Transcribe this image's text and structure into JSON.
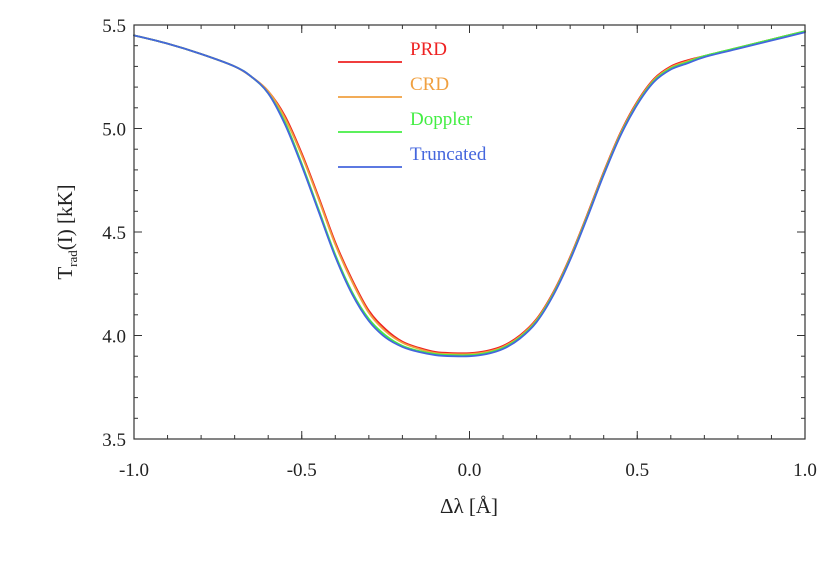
{
  "chart_data": {
    "type": "line",
    "xlabel": "Δλ [Å]",
    "ylabel": {
      "main": "T",
      "sub": "rad",
      "rest": "(I) [kK]"
    },
    "xlim": [
      -1.0,
      1.0
    ],
    "ylim": [
      3.5,
      5.5
    ],
    "xticks": [
      -1.0,
      -0.5,
      0.0,
      0.5,
      1.0
    ],
    "xtick_labels": [
      "-1.0",
      "-0.5",
      "0.0",
      "0.5",
      "1.0"
    ],
    "yticks": [
      3.5,
      4.0,
      4.5,
      5.0,
      5.5
    ],
    "ytick_labels": [
      "3.5",
      "4.0",
      "4.5",
      "5.0",
      "5.5"
    ],
    "legend_position": "top-center",
    "series": [
      {
        "name": "PRD",
        "color": "#ee2222",
        "x": [
          -1.0,
          -0.9,
          -0.8,
          -0.7,
          -0.65,
          -0.6,
          -0.55,
          -0.5,
          -0.45,
          -0.4,
          -0.35,
          -0.3,
          -0.25,
          -0.2,
          -0.15,
          -0.1,
          -0.05,
          0.0,
          0.05,
          0.1,
          0.15,
          0.2,
          0.25,
          0.3,
          0.35,
          0.4,
          0.45,
          0.5,
          0.55,
          0.6,
          0.65,
          0.7,
          0.8,
          0.9,
          1.0
        ],
        "values": [
          5.45,
          5.41,
          5.36,
          5.3,
          5.25,
          5.18,
          5.06,
          4.88,
          4.67,
          4.45,
          4.27,
          4.12,
          4.03,
          3.97,
          3.94,
          3.92,
          3.915,
          3.915,
          3.925,
          3.95,
          4.0,
          4.08,
          4.21,
          4.38,
          4.58,
          4.79,
          4.98,
          5.13,
          5.24,
          5.3,
          5.33,
          5.35,
          5.39,
          5.43,
          5.47
        ]
      },
      {
        "name": "CRD",
        "color": "#f0a040",
        "x": [
          -1.0,
          -0.9,
          -0.8,
          -0.7,
          -0.65,
          -0.6,
          -0.55,
          -0.5,
          -0.45,
          -0.4,
          -0.35,
          -0.3,
          -0.25,
          -0.2,
          -0.15,
          -0.1,
          -0.05,
          0.0,
          0.05,
          0.1,
          0.15,
          0.2,
          0.25,
          0.3,
          0.35,
          0.4,
          0.45,
          0.5,
          0.55,
          0.6,
          0.65,
          0.7,
          0.8,
          0.9,
          1.0
        ],
        "values": [
          5.45,
          5.41,
          5.36,
          5.3,
          5.25,
          5.18,
          5.05,
          4.87,
          4.66,
          4.44,
          4.26,
          4.11,
          4.02,
          3.965,
          3.935,
          3.915,
          3.91,
          3.91,
          3.92,
          3.945,
          3.995,
          4.075,
          4.205,
          4.375,
          4.575,
          4.785,
          4.975,
          5.125,
          5.235,
          5.295,
          5.325,
          5.35,
          5.39,
          5.43,
          5.47
        ]
      },
      {
        "name": "Doppler",
        "color": "#44ee44",
        "x": [
          -1.0,
          -0.9,
          -0.8,
          -0.7,
          -0.65,
          -0.6,
          -0.55,
          -0.5,
          -0.45,
          -0.4,
          -0.35,
          -0.3,
          -0.25,
          -0.2,
          -0.15,
          -0.1,
          -0.05,
          0.0,
          0.05,
          0.1,
          0.15,
          0.2,
          0.25,
          0.3,
          0.35,
          0.4,
          0.45,
          0.5,
          0.55,
          0.6,
          0.65,
          0.7,
          0.8,
          0.9,
          1.0
        ],
        "values": [
          5.45,
          5.41,
          5.36,
          5.3,
          5.25,
          5.17,
          5.03,
          4.83,
          4.61,
          4.39,
          4.21,
          4.08,
          4.0,
          3.95,
          3.925,
          3.91,
          3.905,
          3.905,
          3.915,
          3.94,
          3.99,
          4.07,
          4.2,
          4.37,
          4.57,
          4.78,
          4.97,
          5.12,
          5.23,
          5.29,
          5.32,
          5.35,
          5.39,
          5.43,
          5.47
        ]
      },
      {
        "name": "Truncated",
        "color": "#4466dd",
        "x": [
          -1.0,
          -0.9,
          -0.8,
          -0.7,
          -0.65,
          -0.6,
          -0.55,
          -0.5,
          -0.45,
          -0.4,
          -0.35,
          -0.3,
          -0.25,
          -0.2,
          -0.15,
          -0.1,
          -0.05,
          0.0,
          0.05,
          0.1,
          0.15,
          0.2,
          0.25,
          0.3,
          0.35,
          0.4,
          0.45,
          0.5,
          0.55,
          0.6,
          0.65,
          0.7,
          0.8,
          0.9,
          1.0
        ],
        "values": [
          5.45,
          5.41,
          5.36,
          5.3,
          5.25,
          5.17,
          5.02,
          4.82,
          4.6,
          4.38,
          4.2,
          4.07,
          3.99,
          3.945,
          3.92,
          3.905,
          3.9,
          3.9,
          3.91,
          3.935,
          3.985,
          4.065,
          4.195,
          4.365,
          4.565,
          4.775,
          4.965,
          5.115,
          5.225,
          5.285,
          5.315,
          5.345,
          5.385,
          5.425,
          5.465
        ]
      }
    ]
  }
}
